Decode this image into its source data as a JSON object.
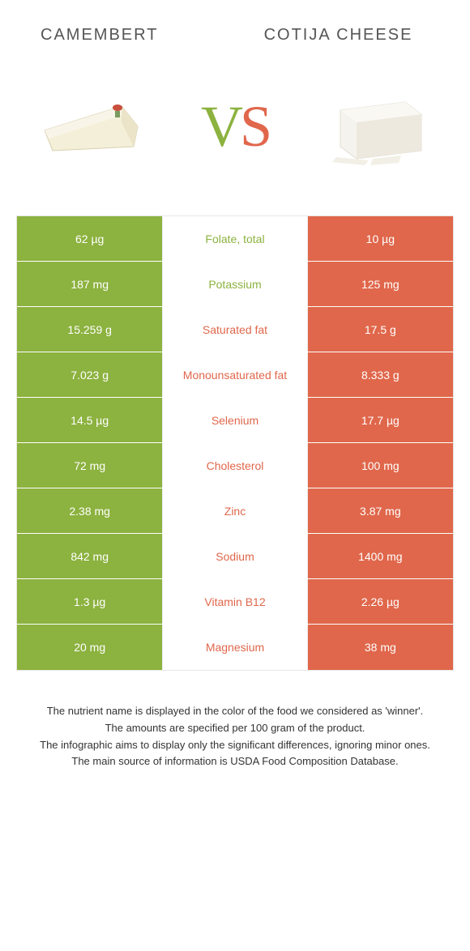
{
  "header": {
    "left_title": "CAMEMBERT",
    "right_title": "COTIJA CHEESE",
    "vs_v": "V",
    "vs_s": "S"
  },
  "colors": {
    "green": "#8cb23f",
    "orange": "#e0674b",
    "row_border": "#ffffff",
    "table_border": "#e6e6e6",
    "text": "#333333"
  },
  "table": {
    "rows": [
      {
        "left": "62 µg",
        "nutrient": "Folate, total",
        "winner": "green",
        "right": "10 µg"
      },
      {
        "left": "187 mg",
        "nutrient": "Potassium",
        "winner": "green",
        "right": "125 mg"
      },
      {
        "left": "15.259 g",
        "nutrient": "Saturated fat",
        "winner": "orange",
        "right": "17.5 g"
      },
      {
        "left": "7.023 g",
        "nutrient": "Monounsaturated fat",
        "winner": "orange",
        "right": "8.333 g"
      },
      {
        "left": "14.5 µg",
        "nutrient": "Selenium",
        "winner": "orange",
        "right": "17.7 µg"
      },
      {
        "left": "72 mg",
        "nutrient": "Cholesterol",
        "winner": "orange",
        "right": "100 mg"
      },
      {
        "left": "2.38 mg",
        "nutrient": "Zinc",
        "winner": "orange",
        "right": "3.87 mg"
      },
      {
        "left": "842 mg",
        "nutrient": "Sodium",
        "winner": "orange",
        "right": "1400 mg"
      },
      {
        "left": "1.3 µg",
        "nutrient": "Vitamin B12",
        "winner": "orange",
        "right": "2.26 µg"
      },
      {
        "left": "20 mg",
        "nutrient": "Magnesium",
        "winner": "orange",
        "right": "38 mg"
      }
    ]
  },
  "footer": {
    "line1": "The nutrient name is displayed in the color of the food we considered as 'winner'.",
    "line2": "The amounts are specified per 100 gram of the product.",
    "line3": "The infographic aims to display only the significant differences, ignoring minor ones.",
    "line4": "The main source of information is USDA Food Composition Database."
  }
}
